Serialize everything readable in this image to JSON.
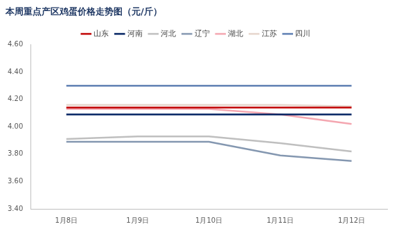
{
  "chart_data": {
    "type": "line",
    "title": "本周重点产区鸡蛋价格走势图（元/斤）",
    "categories": [
      "1月8日",
      "1月9日",
      "1月10日",
      "1月11日",
      "1月12日"
    ],
    "series": [
      {
        "name": "山东",
        "color": "#c00000",
        "values": [
          4.14,
          4.14,
          4.14,
          4.14,
          4.14
        ]
      },
      {
        "name": "河南",
        "color": "#002060",
        "values": [
          4.09,
          4.09,
          4.09,
          4.09,
          4.09
        ]
      },
      {
        "name": "河北",
        "color": "#bfbfbf",
        "values": [
          3.91,
          3.93,
          3.93,
          3.88,
          3.82
        ]
      },
      {
        "name": "辽宁",
        "color": "#8497b0",
        "values": [
          3.89,
          3.89,
          3.89,
          3.79,
          3.75
        ]
      },
      {
        "name": "湖北",
        "color": "#f4a6b0",
        "values": [
          4.13,
          4.13,
          4.13,
          4.09,
          4.02
        ]
      },
      {
        "name": "江苏",
        "color": "#e6d5cc",
        "values": [
          4.16,
          4.16,
          4.16,
          4.16,
          4.15
        ]
      },
      {
        "name": "四川",
        "color": "#5b7db1",
        "values": [
          4.3,
          4.3,
          4.3,
          4.3,
          4.3
        ]
      }
    ],
    "ylim": [
      3.4,
      4.6
    ],
    "yticks": [
      {
        "value": 3.4,
        "label": "3.40"
      },
      {
        "value": 3.6,
        "label": "3.60"
      },
      {
        "value": 3.8,
        "label": "3.80"
      },
      {
        "value": 4.0,
        "label": "4.00"
      },
      {
        "value": 4.2,
        "label": "4.20"
      },
      {
        "value": 4.4,
        "label": "4.40"
      },
      {
        "value": 4.6,
        "label": "4.60"
      }
    ],
    "grid": false,
    "legend": "top"
  }
}
